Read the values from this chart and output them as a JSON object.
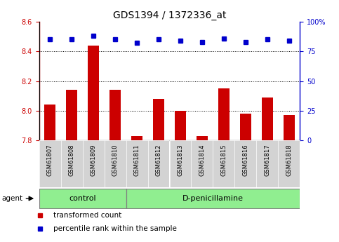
{
  "title": "GDS1394 / 1372336_at",
  "samples": [
    "GSM61807",
    "GSM61808",
    "GSM61809",
    "GSM61810",
    "GSM61811",
    "GSM61812",
    "GSM61813",
    "GSM61814",
    "GSM61815",
    "GSM61816",
    "GSM61817",
    "GSM61818"
  ],
  "red_values": [
    8.04,
    8.14,
    8.44,
    8.14,
    7.83,
    8.08,
    8.0,
    7.83,
    8.15,
    7.98,
    8.09,
    7.97
  ],
  "blue_values": [
    85,
    85,
    88,
    85,
    82,
    85,
    84,
    83,
    86,
    83,
    85,
    84
  ],
  "ylim_left": [
    7.8,
    8.6
  ],
  "ylim_right": [
    0,
    100
  ],
  "yticks_left": [
    7.8,
    8.0,
    8.2,
    8.4,
    8.6
  ],
  "yticks_right": [
    0,
    25,
    50,
    75,
    100
  ],
  "groups": [
    {
      "label": "control",
      "start": 0,
      "end": 4
    },
    {
      "label": "D-penicillamine",
      "start": 4,
      "end": 12
    }
  ],
  "group_color": "#90EE90",
  "bar_color": "#CC0000",
  "dot_color": "#0000CC",
  "bar_width": 0.5,
  "tick_color_left": "#CC0000",
  "tick_color_right": "#0000CC",
  "legend_items": [
    {
      "label": "transformed count",
      "color": "#CC0000"
    },
    {
      "label": "percentile rank within the sample",
      "color": "#0000CC"
    }
  ],
  "agent_label": "agent",
  "ticklabel_fontsize": 7,
  "title_fontsize": 10,
  "sample_box_color": "#D3D3D3"
}
